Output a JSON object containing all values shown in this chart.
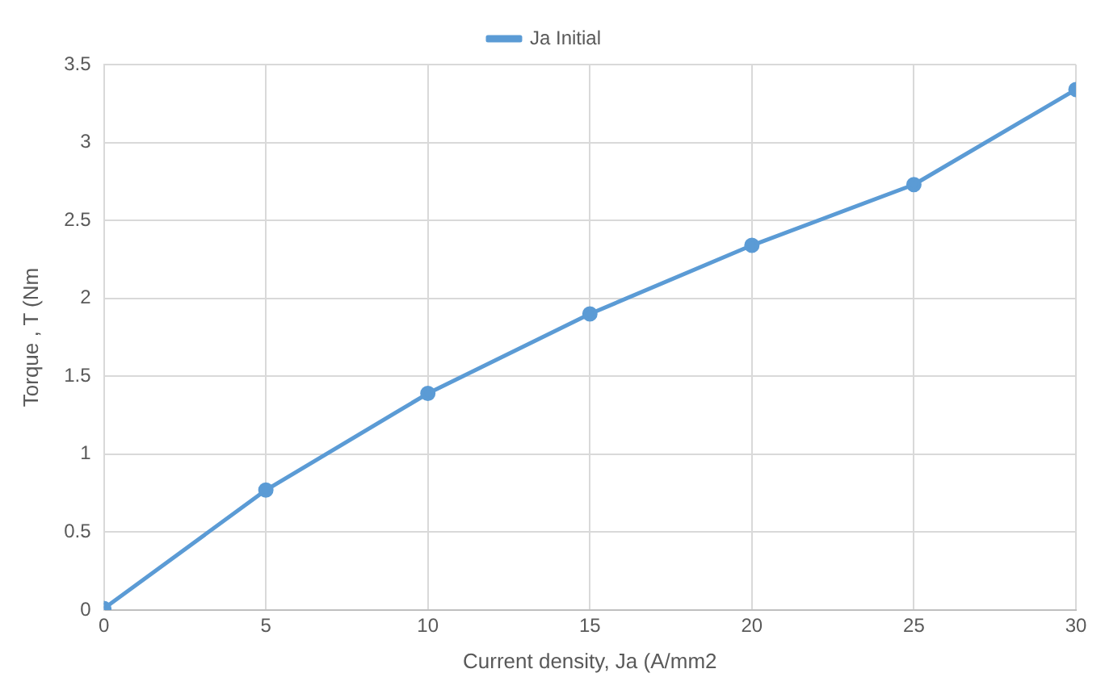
{
  "chart_data": {
    "type": "line",
    "xlabel": "Current density, Ja (A/mm2",
    "ylabel": "Torque , T (Nm",
    "x": [
      0,
      5,
      10,
      15,
      20,
      25,
      30
    ],
    "series": [
      {
        "name": "Ja Initial",
        "color": "#5b9bd5",
        "values": [
          0.01,
          0.77,
          1.39,
          1.9,
          2.34,
          2.73,
          3.34
        ]
      }
    ],
    "xlim": [
      0,
      30
    ],
    "xticks": [
      0,
      5,
      10,
      15,
      20,
      25,
      30
    ],
    "ylim": [
      0,
      3.5
    ],
    "yticks": [
      0,
      0.5,
      1,
      1.5,
      2,
      2.5,
      3,
      3.5
    ],
    "grid": true,
    "legend": "top",
    "marker": "circle",
    "line_style": "solid"
  }
}
